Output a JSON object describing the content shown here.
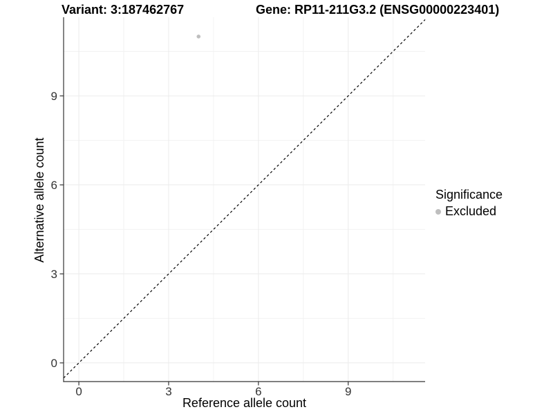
{
  "figure": {
    "title_left": "Variant: 3:187462767",
    "title_right": "Gene: RP11-211G3.2 (ENSG00000223401)"
  },
  "chart_data": {
    "type": "scatter",
    "title": "Variant: 3:187462767    Gene: RP11-211G3.2 (ENSG00000223401)",
    "xlabel": "Reference allele count",
    "ylabel": "Alternative allele count",
    "xlim": [
      -0.51,
      11.57
    ],
    "ylim": [
      -0.63,
      11.65
    ],
    "x_ticks": [
      0,
      3,
      6,
      9
    ],
    "y_ticks": [
      0,
      3,
      6,
      9
    ],
    "x_minor_ticks": [
      1.5,
      4.5,
      7.5,
      10.5
    ],
    "y_minor_ticks": [
      1.5,
      4.5,
      7.5,
      10.5
    ],
    "grid": "major+minor",
    "points": [
      {
        "x": 4,
        "y": 11,
        "series": "Excluded"
      }
    ],
    "reference_line": {
      "kind": "y=x diagonal",
      "style": "dashed",
      "color": "#000000"
    },
    "legend": {
      "title": "Significance",
      "position": "right",
      "entries": [
        {
          "label": "Excluded",
          "color": "#bebebe"
        }
      ]
    },
    "colors": {
      "point": "#bebebe",
      "grid_major": "#ebebeb",
      "grid_minor": "#f2f2f2",
      "axis_line": "#333333",
      "tick_text": "#333333"
    }
  }
}
